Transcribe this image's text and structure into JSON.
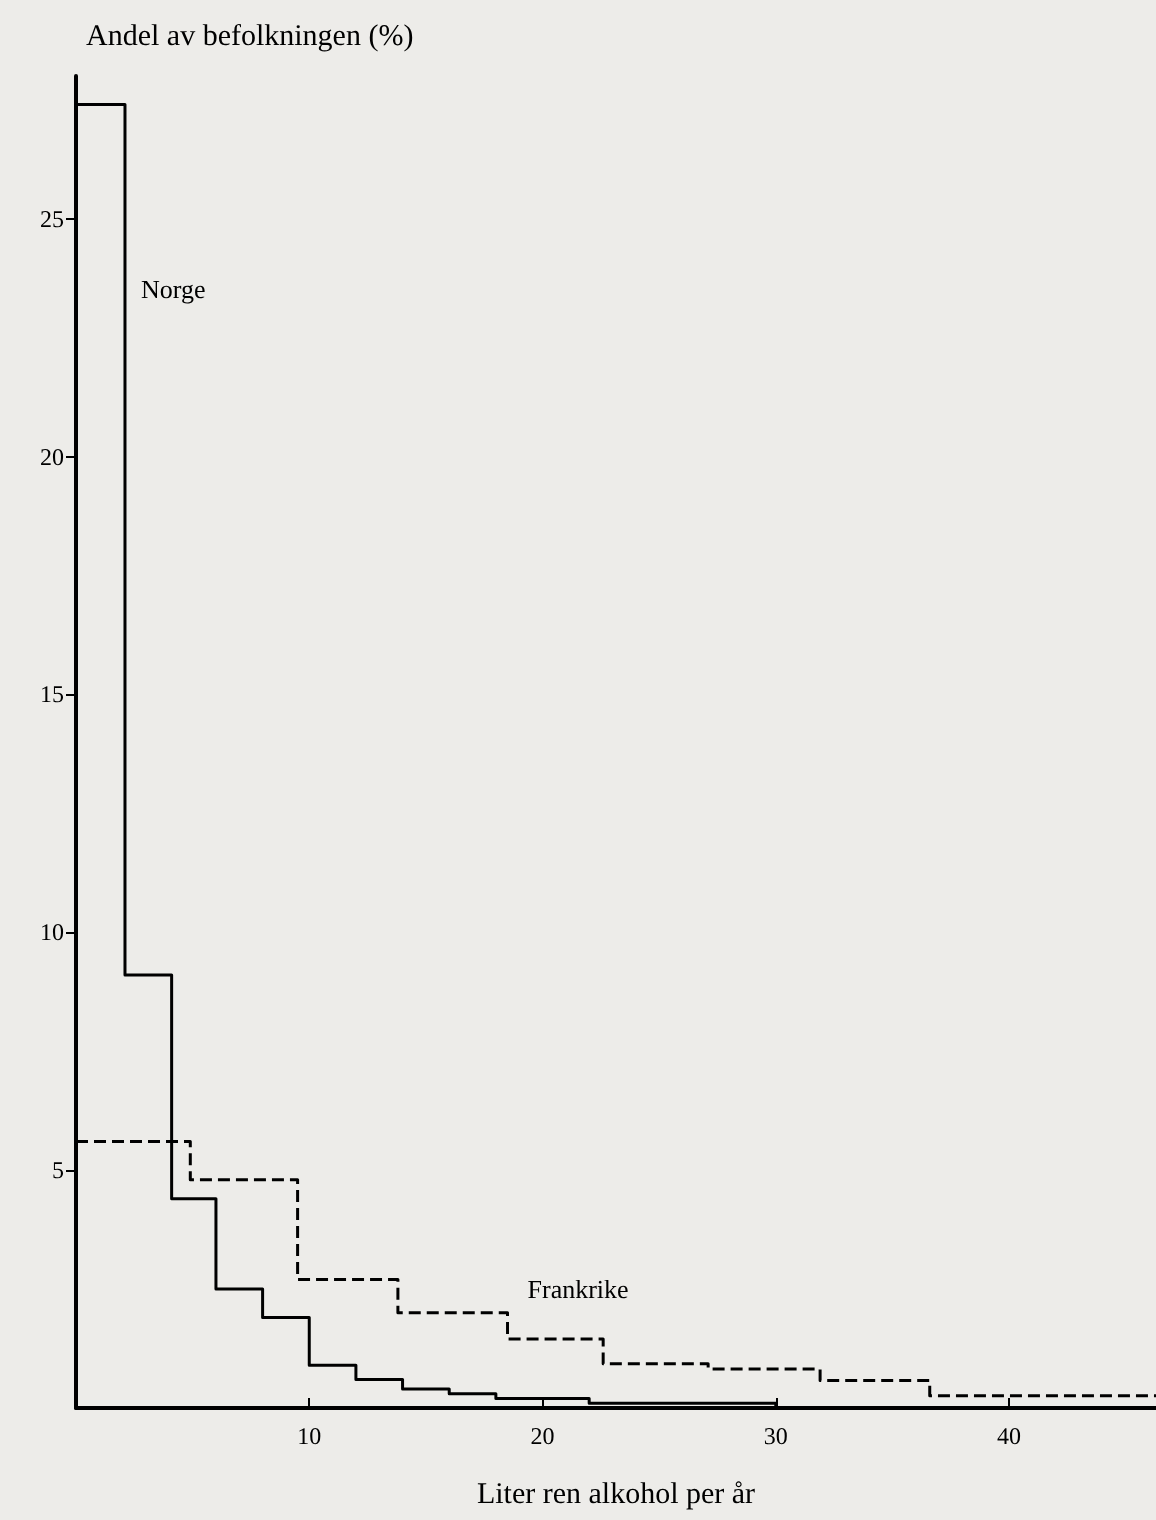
{
  "chart_data": {
    "type": "step",
    "ylabel": "Andel av befolkningen (%)",
    "xlabel": "Liter ren alkohol per år",
    "xlim": [
      0,
      46.3
    ],
    "xticks": [
      10,
      20,
      30,
      40
    ],
    "ylim": [
      0,
      28
    ],
    "yticks": [
      5,
      10,
      15,
      20,
      25
    ],
    "marker": "none",
    "series": [
      {
        "name": "Norge",
        "color": "#000000",
        "line_style": "solid",
        "x": [
          0,
          2.1,
          4.1,
          6,
          8,
          10,
          12,
          14,
          16,
          18,
          22,
          30
        ],
        "values": [
          27.4,
          9.1,
          4.4,
          2.5,
          1.9,
          0.9,
          0.6,
          0.4,
          0.3,
          0.2,
          0.1,
          0
        ]
      },
      {
        "name": "Frankrike",
        "color": "#000000",
        "line_style": "dashed",
        "x": [
          0,
          4.9,
          9.5,
          13.8,
          18.5,
          22.6,
          27.1,
          31.9,
          36.6,
          46.3
        ],
        "values": [
          5.6,
          4.8,
          2.7,
          2.0,
          1.45,
          0.93,
          0.82,
          0.58,
          0.26,
          0.26
        ]
      }
    ]
  }
}
